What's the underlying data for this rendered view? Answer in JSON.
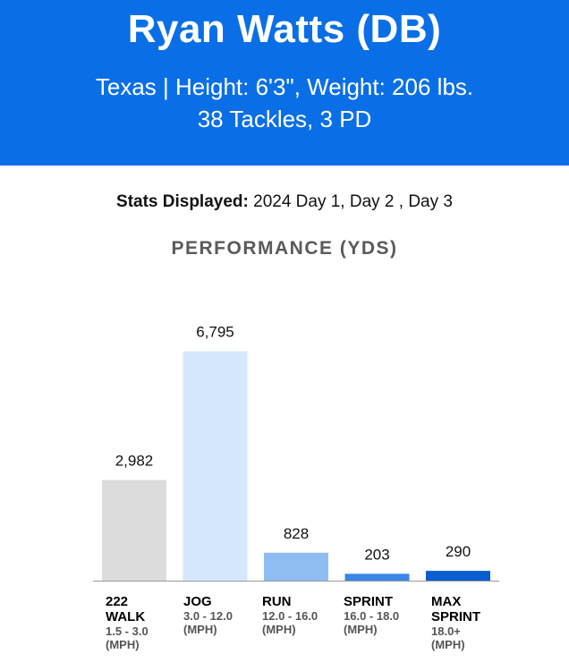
{
  "header": {
    "name": "Ryan Watts (DB)",
    "info_line1": "Texas | Height: 6'3\", Weight: 206 lbs.",
    "info_line2": "38 Tackles, 3 PD",
    "bg_color": "#0a6fe6"
  },
  "stats_displayed": {
    "label": "Stats Displayed:",
    "value": "2024 Day 1, Day 2 , Day 3"
  },
  "chart_data": {
    "type": "bar",
    "title": "PERFORMANCE (YDS)",
    "categories": [
      "WALK",
      "JOG",
      "RUN",
      "SPRINT",
      "MAX SPRINT"
    ],
    "values": [
      2982,
      6795,
      828,
      203,
      290
    ],
    "value_labels": [
      "2,982",
      "6,795",
      "828",
      "203",
      "290"
    ],
    "ylim": [
      0,
      7000
    ],
    "grid": false,
    "colors": [
      "#dcdcdc",
      "#d6e8fd",
      "#8fbdf3",
      "#3a86e8",
      "#0a5fd0"
    ],
    "category_labels": [
      {
        "line1": "222",
        "line2": "WALK",
        "range1": "1.5 - 3.0",
        "range2": "(MPH)"
      },
      {
        "line1": "JOG",
        "line2": "",
        "range1": "3.0 - 12.0",
        "range2": "(MPH)"
      },
      {
        "line1": "RUN",
        "line2": "",
        "range1": "12.0 - 16.0",
        "range2": "(MPH)"
      },
      {
        "line1": "SPRINT",
        "line2": "",
        "range1": "16.0 - 18.0",
        "range2": "(MPH)"
      },
      {
        "line1": "MAX",
        "line2": "SPRINT",
        "range1": "18.0+",
        "range2": "(MPH)"
      }
    ]
  }
}
